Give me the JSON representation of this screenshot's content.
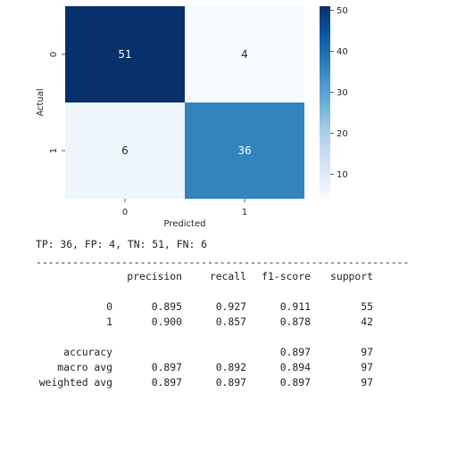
{
  "chart_data": {
    "type": "heatmap",
    "rows": [
      "0",
      "1"
    ],
    "columns": [
      "0",
      "1"
    ],
    "values": [
      [
        51,
        4
      ],
      [
        6,
        36
      ]
    ],
    "xlabel": "Predicted",
    "ylabel": "Actual",
    "colorbar": {
      "min": 4,
      "max": 51,
      "ticks": [
        "10",
        "20",
        "30",
        "40",
        "50"
      ],
      "tick_values": [
        10,
        20,
        30,
        40,
        50
      ]
    },
    "colormap": [
      "#f7fbff",
      "#deebf7",
      "#c6dbef",
      "#9ecae1",
      "#6baed6",
      "#4292c6",
      "#2171b5",
      "#08519c",
      "#08306b"
    ]
  },
  "summary_line": "TP: 36, FP: 4, TN: 51, FN: 6",
  "separator": "-------------------------------------------------------------",
  "report": {
    "headers": [
      "precision",
      "recall",
      "f1-score",
      "support"
    ],
    "class_rows": [
      {
        "label": "0",
        "precision": "0.895",
        "recall": "0.927",
        "f1": "0.911",
        "support": "55"
      },
      {
        "label": "1",
        "precision": "0.900",
        "recall": "0.857",
        "f1": "0.878",
        "support": "42"
      }
    ],
    "accuracy": {
      "label": "accuracy",
      "f1": "0.897",
      "support": "97"
    },
    "avg_rows": [
      {
        "label": "macro avg",
        "precision": "0.897",
        "recall": "0.892",
        "f1": "0.894",
        "support": "97"
      },
      {
        "label": "weighted avg",
        "precision": "0.897",
        "recall": "0.897",
        "f1": "0.897",
        "support": "97"
      }
    ]
  }
}
